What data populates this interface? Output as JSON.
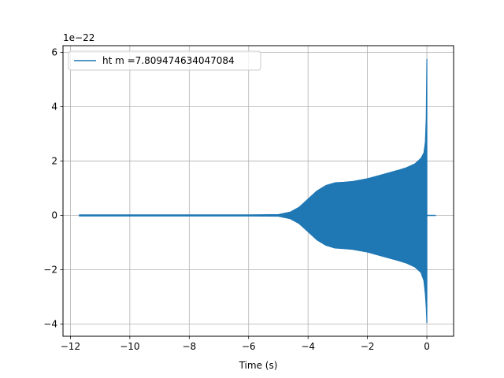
{
  "chart_data": {
    "type": "line",
    "title": "",
    "xlabel": "Time (s)",
    "ylabel": "",
    "y_offset_label": "1e−22",
    "xlim": [
      -12.25,
      0.9
    ],
    "ylim": [
      -4.45,
      6.25
    ],
    "x_ticks": [
      -12,
      -10,
      -8,
      -6,
      -4,
      -2,
      0
    ],
    "x_tick_labels": [
      "−12",
      "−10",
      "−8",
      "−6",
      "−4",
      "−2",
      "0"
    ],
    "y_ticks": [
      -4,
      -2,
      0,
      2,
      4,
      6
    ],
    "y_tick_labels": [
      "−4",
      "−2",
      "0",
      "2",
      "4",
      "6"
    ],
    "grid": true,
    "legend_position": "top-left",
    "series": [
      {
        "name": "ht m =7.809474634047084",
        "color": "#1f77b4",
        "envelope": {
          "x": [
            -11.7,
            -8.0,
            -6.0,
            -5.0,
            -4.6,
            -4.3,
            -4.0,
            -3.7,
            -3.4,
            -3.1,
            -2.8,
            -2.5,
            -2.0,
            -1.5,
            -1.0,
            -0.7,
            -0.4,
            -0.2,
            -0.1,
            -0.05,
            -0.02,
            0.0
          ],
          "upper": [
            0.02,
            0.02,
            0.02,
            0.03,
            0.12,
            0.3,
            0.6,
            0.9,
            1.1,
            1.2,
            1.22,
            1.25,
            1.35,
            1.5,
            1.65,
            1.75,
            1.9,
            2.1,
            2.3,
            2.7,
            3.6,
            5.75
          ],
          "lower": [
            -0.02,
            -0.02,
            -0.02,
            -0.03,
            -0.12,
            -0.3,
            -0.6,
            -0.9,
            -1.1,
            -1.2,
            -1.22,
            -1.25,
            -1.35,
            -1.5,
            -1.65,
            -1.75,
            -1.9,
            -2.1,
            -2.4,
            -2.9,
            -3.4,
            -3.95
          ]
        },
        "ringdown": {
          "x": [
            0.0,
            0.3
          ],
          "y": [
            0.0,
            0.0
          ]
        }
      }
    ]
  }
}
